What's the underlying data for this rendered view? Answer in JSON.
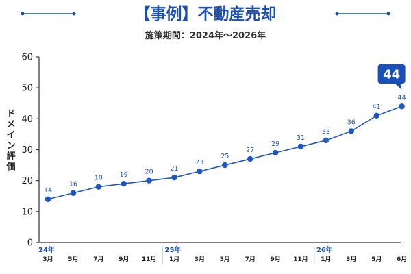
{
  "header": {
    "title": "【事例】不動産売却",
    "subtitle": "施策期間：2024年～2026年"
  },
  "colors": {
    "accent": "#1a4fb5",
    "line": "#1f56c6",
    "text": "#222222",
    "axis": "#333333"
  },
  "chart_data": {
    "type": "line",
    "title": "【事例】不動産売却",
    "subtitle": "施策期間：2024年～2026年",
    "xlabel": "",
    "ylabel": "ドメイン評価",
    "ylim": [
      0,
      60
    ],
    "yticks": [
      "0",
      "10",
      "20",
      "30",
      "40",
      "50",
      "60"
    ],
    "grid": false,
    "categories": [
      "3月",
      "5月",
      "7月",
      "9月",
      "11月",
      "1月",
      "3月",
      "5月",
      "7月",
      "9月",
      "11月",
      "1月",
      "3月",
      "5月",
      "6月"
    ],
    "year_labels": [
      {
        "label": "24年",
        "index": 0
      },
      {
        "label": "25年",
        "index": 5
      },
      {
        "label": "26年",
        "index": 11
      }
    ],
    "series": [
      {
        "values": [
          14,
          16,
          18,
          19,
          20,
          21,
          23,
          25,
          27,
          29,
          31,
          33,
          36,
          41,
          44
        ],
        "labels": [
          "14",
          "16",
          "18",
          "19",
          "20",
          "21",
          "23",
          "25",
          "27",
          "29",
          "31",
          "33",
          "36",
          "41",
          "44"
        ]
      }
    ],
    "callout": {
      "text": "44",
      "index": 14
    }
  }
}
